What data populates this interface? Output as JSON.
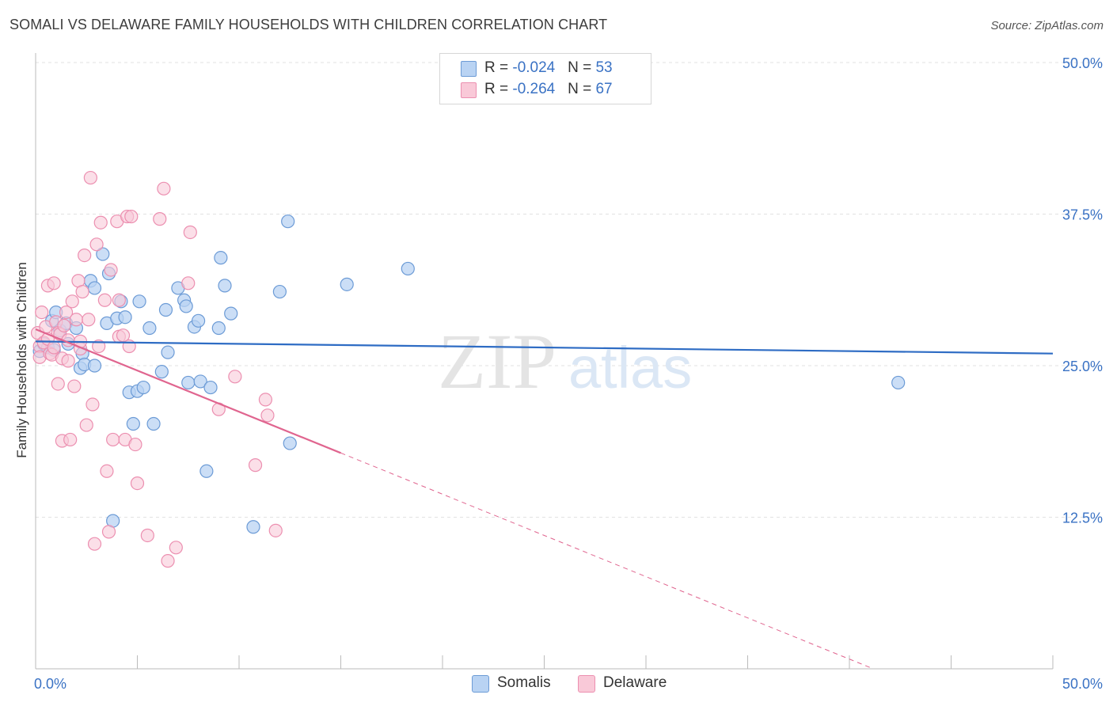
{
  "title": "SOMALI VS DELAWARE FAMILY HOUSEHOLDS WITH CHILDREN CORRELATION CHART",
  "source": "Source: ZipAtlas.com",
  "watermark": {
    "zip": "ZIP",
    "atlas": "atlas"
  },
  "legend": {
    "rows": [
      {
        "r_label": "R = ",
        "r_value": "-0.024",
        "n_label": "N = ",
        "n_value": "53"
      },
      {
        "r_label": "R = ",
        "r_value": "-0.264",
        "n_label": "N = ",
        "n_value": "67"
      }
    ],
    "bottom": [
      {
        "label": "Somalis"
      },
      {
        "label": "Delaware"
      }
    ]
  },
  "colors": {
    "somalis_fill": "#b9d3f3",
    "somalis_stroke": "#6c9bd6",
    "somalis_line": "#2e6cc4",
    "delaware_fill": "#f9c9d8",
    "delaware_stroke": "#ec8fb0",
    "delaware_line": "#e0658f",
    "tick_label": "#3a72c4",
    "grid": "#e2e2e2"
  },
  "chart_data": {
    "type": "scatter",
    "title": "SOMALI VS DELAWARE FAMILY HOUSEHOLDS WITH CHILDREN CORRELATION CHART",
    "xlabel": "",
    "ylabel": "Family Households with Children",
    "xlim": [
      0,
      50
    ],
    "ylim": [
      0,
      50
    ],
    "x_tick_labels": [
      "0.0%",
      "50.0%"
    ],
    "y_ticks": [
      12.5,
      25.0,
      37.5,
      50.0
    ],
    "y_tick_labels": [
      "12.5%",
      "25.0%",
      "37.5%",
      "50.0%"
    ],
    "grid": true,
    "series": [
      {
        "name": "Somalis",
        "R": -0.024,
        "N": 53,
        "trend": {
          "x0": 0,
          "y0": 27.0,
          "x1": 50,
          "y1": 26.0
        },
        "points": [
          [
            0.2,
            26.2
          ],
          [
            0.4,
            26.8
          ],
          [
            0.6,
            26.5
          ],
          [
            0.9,
            26.3
          ],
          [
            0.8,
            28.7
          ],
          [
            1.0,
            29.4
          ],
          [
            1.2,
            27.9
          ],
          [
            1.5,
            28.5
          ],
          [
            1.6,
            26.8
          ],
          [
            2.0,
            28.1
          ],
          [
            2.2,
            24.8
          ],
          [
            2.3,
            26.0
          ],
          [
            2.4,
            25.1
          ],
          [
            2.7,
            32.0
          ],
          [
            2.9,
            31.4
          ],
          [
            2.9,
            25.0
          ],
          [
            3.3,
            34.2
          ],
          [
            3.5,
            28.5
          ],
          [
            3.6,
            32.6
          ],
          [
            4.0,
            28.9
          ],
          [
            4.2,
            30.3
          ],
          [
            4.4,
            29.0
          ],
          [
            4.6,
            22.8
          ],
          [
            4.8,
            20.2
          ],
          [
            5.0,
            22.9
          ],
          [
            5.1,
            30.3
          ],
          [
            5.3,
            23.2
          ],
          [
            5.6,
            28.1
          ],
          [
            5.8,
            20.2
          ],
          [
            6.2,
            24.5
          ],
          [
            6.4,
            29.6
          ],
          [
            6.5,
            26.1
          ],
          [
            7.0,
            31.4
          ],
          [
            7.3,
            30.4
          ],
          [
            7.4,
            29.9
          ],
          [
            7.5,
            23.6
          ],
          [
            7.8,
            28.2
          ],
          [
            8.0,
            28.7
          ],
          [
            8.1,
            23.7
          ],
          [
            8.4,
            16.3
          ],
          [
            8.6,
            23.2
          ],
          [
            9.0,
            28.1
          ],
          [
            9.1,
            33.9
          ],
          [
            9.3,
            31.6
          ],
          [
            9.6,
            29.3
          ],
          [
            10.7,
            11.7
          ],
          [
            12.0,
            31.1
          ],
          [
            12.4,
            36.9
          ],
          [
            12.5,
            18.6
          ],
          [
            15.3,
            31.7
          ],
          [
            18.3,
            33.0
          ],
          [
            3.8,
            12.2
          ],
          [
            42.4,
            23.6
          ]
        ]
      },
      {
        "name": "Delaware",
        "R": -0.264,
        "N": 67,
        "trend": {
          "x0": 0,
          "y0": 28.0,
          "x1": 15.0,
          "y1": 17.8
        },
        "trend_dashed": {
          "x0": 15.0,
          "y0": 17.8,
          "x1": 50,
          "y1": -6.0
        },
        "points": [
          [
            0.1,
            27.7
          ],
          [
            0.2,
            26.6
          ],
          [
            0.2,
            25.7
          ],
          [
            0.3,
            29.4
          ],
          [
            0.4,
            26.9
          ],
          [
            0.5,
            28.2
          ],
          [
            0.6,
            27.2
          ],
          [
            0.6,
            31.6
          ],
          [
            0.7,
            26.0
          ],
          [
            0.8,
            25.9
          ],
          [
            0.9,
            31.8
          ],
          [
            1.0,
            28.6
          ],
          [
            1.1,
            27.7
          ],
          [
            1.1,
            23.5
          ],
          [
            1.2,
            27.6
          ],
          [
            1.3,
            25.6
          ],
          [
            1.3,
            18.8
          ],
          [
            1.4,
            28.3
          ],
          [
            1.5,
            29.4
          ],
          [
            1.6,
            27.1
          ],
          [
            1.6,
            25.4
          ],
          [
            1.7,
            18.9
          ],
          [
            1.8,
            30.3
          ],
          [
            1.9,
            23.3
          ],
          [
            2.0,
            28.8
          ],
          [
            2.1,
            32.0
          ],
          [
            2.2,
            26.4
          ],
          [
            2.2,
            27.0
          ],
          [
            2.3,
            31.1
          ],
          [
            2.4,
            34.1
          ],
          [
            2.5,
            20.1
          ],
          [
            2.6,
            28.8
          ],
          [
            2.7,
            40.5
          ],
          [
            2.8,
            21.8
          ],
          [
            2.9,
            10.3
          ],
          [
            3.0,
            35.0
          ],
          [
            3.1,
            26.6
          ],
          [
            3.2,
            36.8
          ],
          [
            3.4,
            30.4
          ],
          [
            3.5,
            16.3
          ],
          [
            3.6,
            11.3
          ],
          [
            3.7,
            32.9
          ],
          [
            3.8,
            18.9
          ],
          [
            4.0,
            36.9
          ],
          [
            4.1,
            30.4
          ],
          [
            4.1,
            27.4
          ],
          [
            4.3,
            27.5
          ],
          [
            4.4,
            18.9
          ],
          [
            4.5,
            37.3
          ],
          [
            4.7,
            37.3
          ],
          [
            4.9,
            18.5
          ],
          [
            5.0,
            15.3
          ],
          [
            5.5,
            11.0
          ],
          [
            6.1,
            37.1
          ],
          [
            6.3,
            39.6
          ],
          [
            6.5,
            8.9
          ],
          [
            6.9,
            10.0
          ],
          [
            7.5,
            31.8
          ],
          [
            7.6,
            36.0
          ],
          [
            9.0,
            21.4
          ],
          [
            9.8,
            24.1
          ],
          [
            10.8,
            16.8
          ],
          [
            11.3,
            22.2
          ],
          [
            11.4,
            20.9
          ],
          [
            11.8,
            11.4
          ],
          [
            4.6,
            26.6
          ],
          [
            0.9,
            26.5
          ]
        ]
      }
    ]
  }
}
